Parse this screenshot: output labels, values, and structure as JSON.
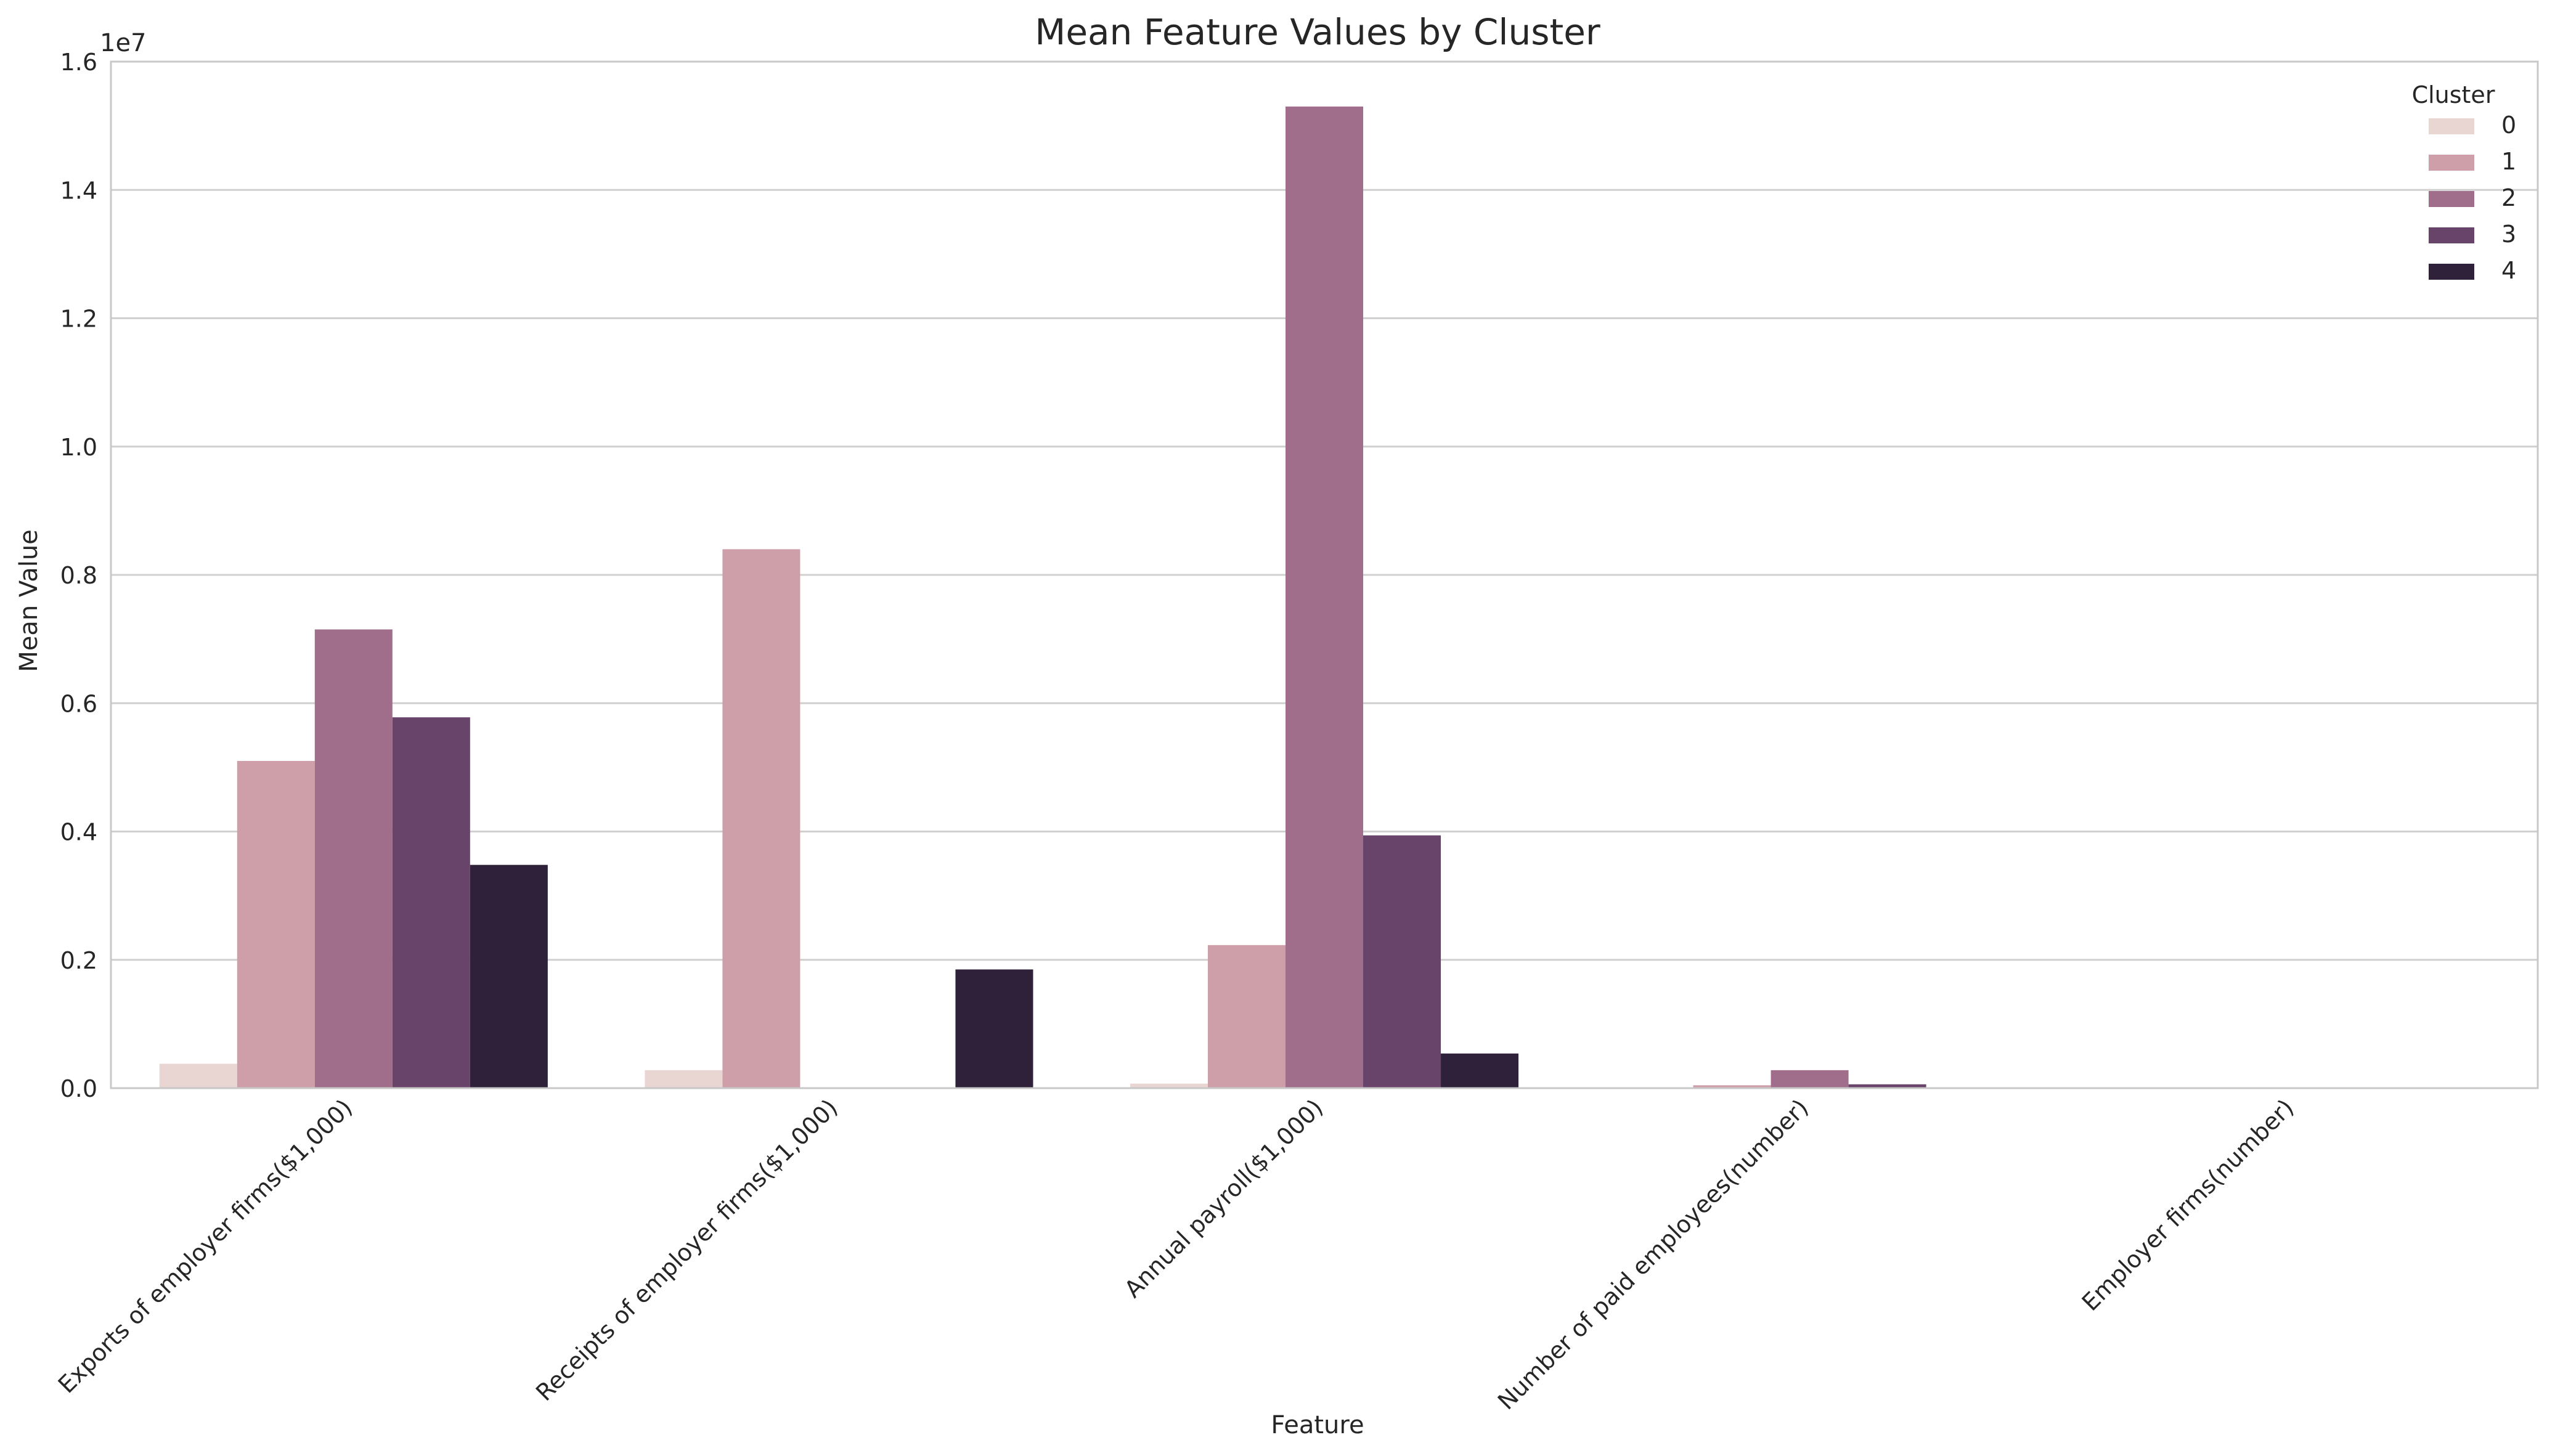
{
  "chart_data": {
    "type": "bar",
    "title": "Mean Feature Values by Cluster",
    "xlabel": "Feature",
    "ylabel": "Mean Value",
    "y_offset_label": "1e7",
    "ylim": [
      0,
      16000000
    ],
    "y_ticks": [
      0,
      2000000,
      4000000,
      6000000,
      8000000,
      10000000,
      12000000,
      14000000,
      16000000
    ],
    "y_tick_labels": [
      "0.0",
      "0.2",
      "0.4",
      "0.6",
      "0.8",
      "1.0",
      "1.2",
      "1.4",
      "1.6"
    ],
    "grid": true,
    "legend": {
      "title": "Cluster",
      "placement": "top-right"
    },
    "categories": [
      "Exports of employer firms($1,000)",
      "Receipts of employer firms($1,000)",
      "Annual payroll($1,000)",
      "Number of paid employees(number)",
      "Employer firms(number)"
    ],
    "series": [
      {
        "name": "0",
        "color": "#e9d5d1",
        "values": [
          380000,
          280000,
          70000,
          2000,
          500
        ]
      },
      {
        "name": "1",
        "color": "#cf9fa9",
        "values": [
          5100000,
          8400000,
          2230000,
          45000,
          1000
        ]
      },
      {
        "name": "2",
        "color": "#a06e8a",
        "values": [
          7150000,
          0,
          15300000,
          280000,
          5000
        ]
      },
      {
        "name": "3",
        "color": "#68446a",
        "values": [
          5780000,
          0,
          3940000,
          60000,
          1500
        ]
      },
      {
        "name": "4",
        "color": "#2e2139",
        "values": [
          3480000,
          1850000,
          540000,
          12000,
          300
        ]
      }
    ]
  }
}
